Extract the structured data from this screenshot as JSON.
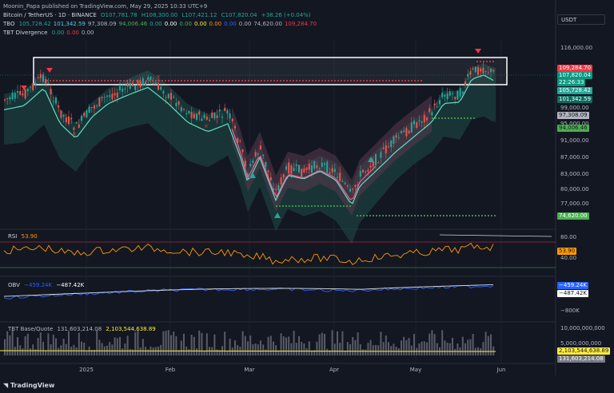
{
  "publisher_line": "Moonin_Papa published on TradingView.com, May 29, 2025 10:33 UTC+9",
  "symbol_line": {
    "name": "Bitcoin / TetherUS · 1D · BINANCE",
    "o": "O107,781.78",
    "h": "H108,300.00",
    "l": "L107,421.12",
    "c": "C107,820.04",
    "chg": "+38.26 (+0.04%)"
  },
  "tbo_line": {
    "label": "TBO",
    "values": [
      "105,728.42",
      "101,342.59",
      "97,308.09",
      "94,006.46",
      "0.00",
      "0.00",
      "0.00",
      "0.00",
      "0.00",
      "0.00",
      "0.00",
      "74,620.00",
      "109,284.70"
    ],
    "colors": [
      "#26a69a",
      "#4dd0e1",
      "#b2b5be",
      "#4caf50",
      "#26a69a",
      "#ffffff",
      "#4caf50",
      "#ffeb3b",
      "#ff9800",
      "#2962ff",
      "#b2b5be",
      "#b2b5be",
      "#f23645"
    ]
  },
  "tbt_div_line": {
    "label": "TBT Divergence",
    "values": [
      "0.00",
      "0.00",
      "0.00"
    ],
    "colors": [
      "#26a69a",
      "#f23645",
      "#b2b5be"
    ]
  },
  "currency_button": "USDT",
  "price_axis": [
    "116,000.00",
    "99,000.00",
    "95,000.00",
    "91,000.00",
    "87,000.00",
    "83,000.00",
    "80,000.00",
    "77,000.00"
  ],
  "price_badges": [
    {
      "text": "109,284.70",
      "bg": "#f23645",
      "fg": "#ffffff"
    },
    {
      "text": "107,820.04",
      "bg": "#089981",
      "fg": "#ffffff"
    },
    {
      "text": "22:26:33",
      "bg": "#089981",
      "fg": "#ffffff"
    },
    {
      "text": "105,728.42",
      "bg": "#26a69a",
      "fg": "#ffffff"
    },
    {
      "text": "101,342.59",
      "bg": "#0e6b5e",
      "fg": "#ffffff"
    },
    {
      "text": "97,308.09",
      "bg": "#b2b5be",
      "fg": "#131722"
    },
    {
      "text": "94,006.46",
      "bg": "#4caf50",
      "fg": "#131722"
    },
    {
      "text": "74,620.00",
      "bg": "#4caf50",
      "fg": "#ffffff"
    }
  ],
  "rsi": {
    "label": "RSI",
    "value": "53.90",
    "axis": [
      "80.00",
      "40.00"
    ],
    "badge": "53.90"
  },
  "obv": {
    "label": "OBV",
    "v1": "−459.24K",
    "v2": "−487.42K",
    "axis": [
      "−800K"
    ],
    "badge1": "−459.24K",
    "badge2": "−487.42K"
  },
  "tbt_bq": {
    "label": "TBT Base/Quote",
    "v1": "131,603,214.08",
    "v2": "2,103,544,638.89",
    "axis": [
      "10,000,000,000",
      "5,000,000,000"
    ],
    "badge1": "2,103,544,638.89",
    "badge2": "131,603,214.08"
  },
  "time_axis": [
    "2025",
    "Feb",
    "Mar",
    "Apr",
    "May",
    "Jun"
  ],
  "brand": "TradingView",
  "colors": {
    "bg": "#131722",
    "up": "#26a69a",
    "down": "#ef5350",
    "teal_line": "#5ee0c8",
    "pink_line": "#f06292",
    "rsi": "#ff9800",
    "obv": "#2962ff"
  }
}
